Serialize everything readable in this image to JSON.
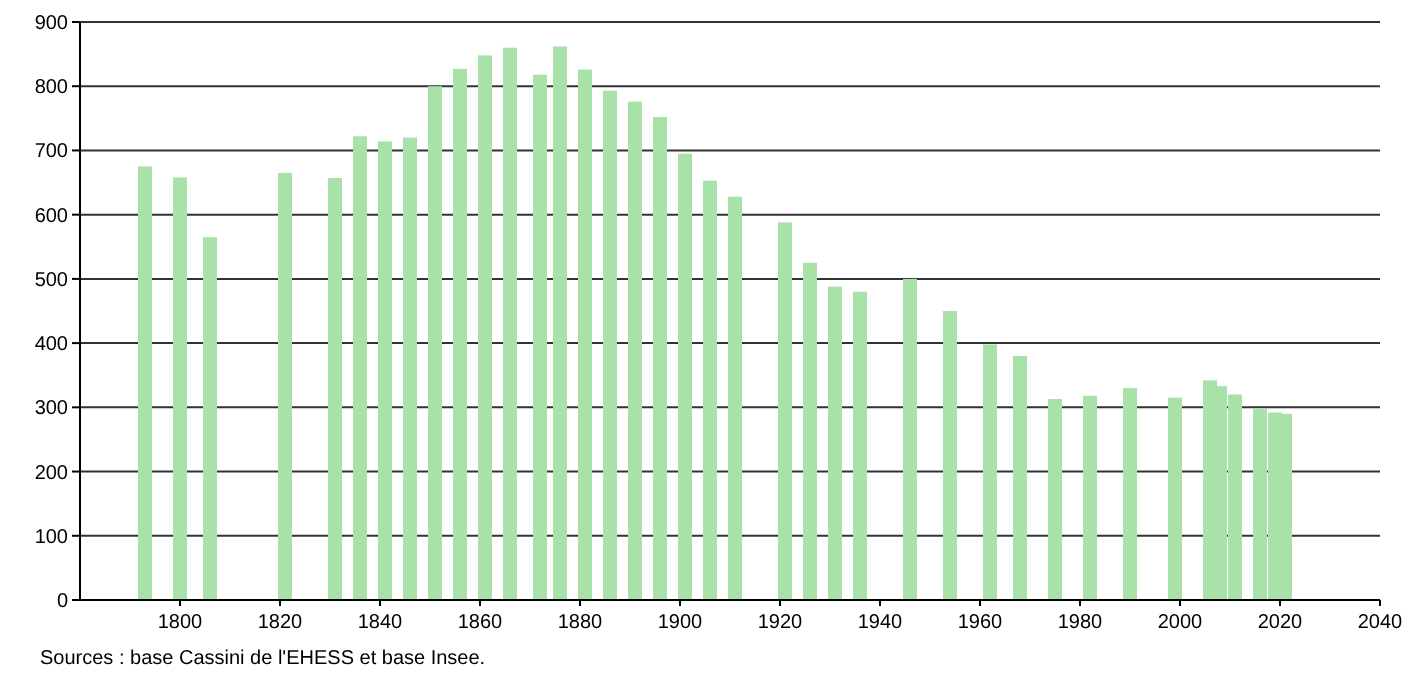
{
  "chart_data": {
    "type": "bar",
    "x": [
      1793,
      1800,
      1806,
      1821,
      1831,
      1836,
      1841,
      1846,
      1851,
      1856,
      1861,
      1866,
      1872,
      1876,
      1881,
      1886,
      1891,
      1896,
      1901,
      1906,
      1911,
      1921,
      1926,
      1931,
      1936,
      1946,
      1954,
      1962,
      1968,
      1975,
      1982,
      1990,
      1999,
      2006,
      2008,
      2011,
      2016,
      2019,
      2021
    ],
    "values": [
      675,
      658,
      565,
      665,
      657,
      722,
      714,
      720,
      800,
      827,
      848,
      860,
      818,
      862,
      826,
      793,
      776,
      752,
      695,
      653,
      628,
      588,
      525,
      488,
      480,
      500,
      450,
      398,
      380,
      313,
      318,
      330,
      315,
      342,
      333,
      320,
      298,
      292,
      290
    ],
    "color": "#a8e2a8",
    "xlim": [
      1780,
      2040
    ],
    "xticks": [
      1800,
      1820,
      1840,
      1860,
      1880,
      1900,
      1920,
      1940,
      1960,
      1980,
      2000,
      2020,
      2040
    ],
    "ylim": [
      0,
      900
    ],
    "yticks": [
      0,
      100,
      200,
      300,
      400,
      500,
      600,
      700,
      800,
      900
    ],
    "grid": "y",
    "annotations": [
      "Sources : base Cassini de l'EHESS et base Insee."
    ]
  }
}
